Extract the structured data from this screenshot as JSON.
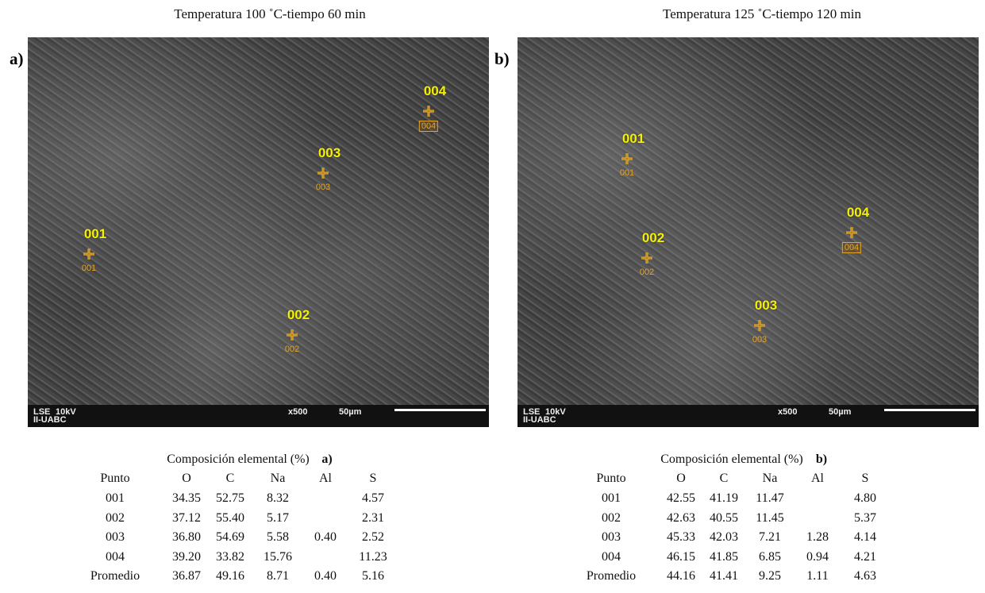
{
  "panels": [
    {
      "label": "a)",
      "title": "Temperatura 100 ˚C-tiempo 60 min",
      "image": {
        "detector": "LSE",
        "voltage": "10kV",
        "lab": "II-UABC",
        "magnification": "x500",
        "scale": "50µm",
        "points": [
          {
            "label": "001"
          },
          {
            "label": "002"
          },
          {
            "label": "003"
          },
          {
            "label": "004"
          }
        ]
      },
      "table": {
        "caption": "Composición elemental (%)",
        "caption_label": "a)",
        "header": [
          "Punto",
          "O",
          "C",
          "Na",
          "Al",
          "S"
        ],
        "rows": [
          [
            "001",
            "34.35",
            "52.75",
            "8.32",
            null,
            "4.57"
          ],
          [
            "002",
            "37.12",
            "55.40",
            "5.17",
            null,
            "2.31"
          ],
          [
            "003",
            "36.80",
            "54.69",
            "5.58",
            "0.40",
            "2.52"
          ],
          [
            "004",
            "39.20",
            "33.82",
            "15.76",
            null,
            "11.23"
          ],
          [
            "Promedio",
            "36.87",
            "49.16",
            "8.71",
            "0.40",
            "5.16"
          ]
        ]
      }
    },
    {
      "label": "b)",
      "title": "Temperatura 125 ˚C-tiempo 120 min",
      "image": {
        "detector": "LSE",
        "voltage": "10kV",
        "lab": "II-UABC",
        "magnification": "x500",
        "scale": "50µm",
        "points": [
          {
            "label": "001"
          },
          {
            "label": "002"
          },
          {
            "label": "003"
          },
          {
            "label": "004"
          }
        ]
      },
      "table": {
        "caption": "Composición elemental (%)",
        "caption_label": "b)",
        "header": [
          "Punto",
          "O",
          "C",
          "Na",
          "Al",
          "S"
        ],
        "rows": [
          [
            "001",
            "42.55",
            "41.19",
            "11.47",
            null,
            "4.80"
          ],
          [
            "002",
            "42.63",
            "40.55",
            "11.45",
            null,
            "5.37"
          ],
          [
            "003",
            "45.33",
            "42.03",
            "7.21",
            "1.28",
            "4.14"
          ],
          [
            "004",
            "46.15",
            "41.85",
            "6.85",
            "0.94",
            "4.21"
          ],
          [
            "Promedio",
            "44.16",
            "41.41",
            "9.25",
            "1.11",
            "4.63"
          ]
        ]
      }
    }
  ]
}
